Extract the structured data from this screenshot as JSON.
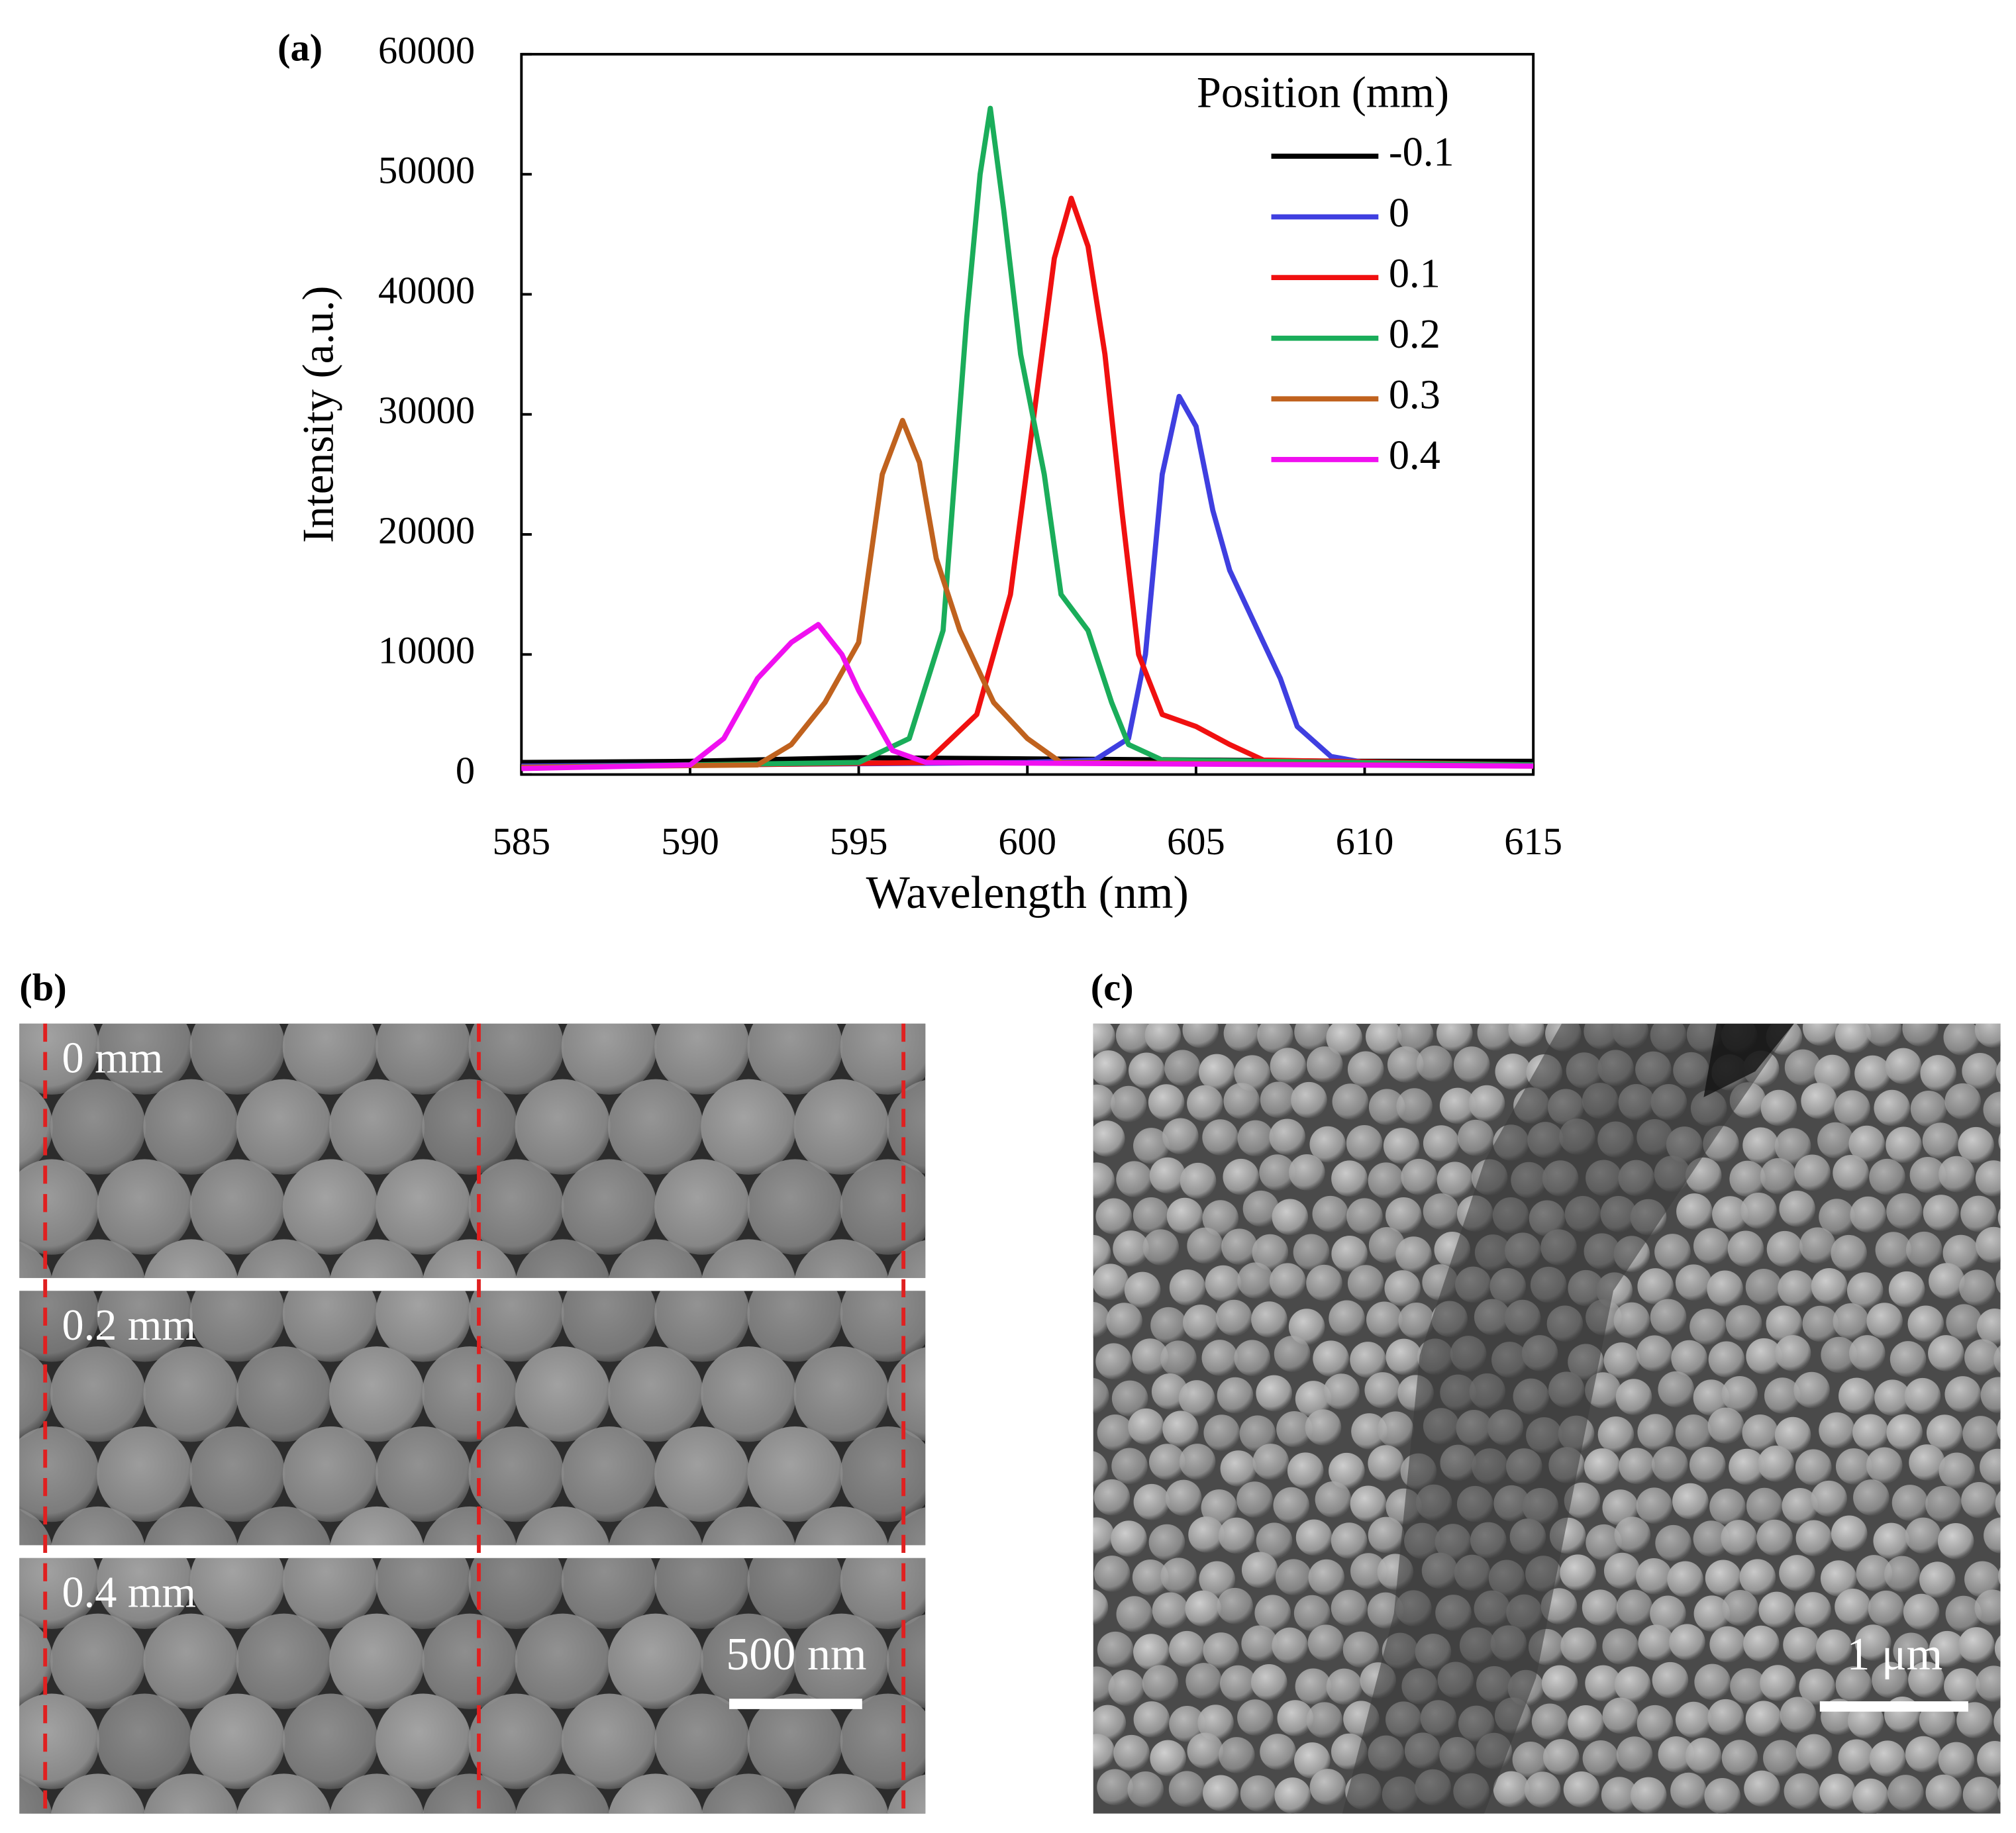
{
  "chart_data": {
    "type": "line",
    "panel_label": "(a)",
    "xlabel": "Wavelength (nm)",
    "ylabel": "Intensity (a.u.)",
    "legend_title": "Position (mm)",
    "xlim": [
      585,
      615
    ],
    "xticks": [
      585,
      590,
      595,
      600,
      605,
      610,
      615
    ],
    "ylim": [
      0,
      60000
    ],
    "yticks": [
      0,
      10000,
      20000,
      30000,
      40000,
      50000,
      60000
    ],
    "series": [
      {
        "name": "-0.1",
        "color": "#000000",
        "x": [
          585,
          590,
          595,
          600,
          605,
          610,
          615
        ],
        "values": [
          1000,
          1100,
          1400,
          1300,
          1200,
          1100,
          1100
        ]
      },
      {
        "name": "0",
        "color": "#3f3fe0",
        "x": [
          585,
          600,
          602,
          603,
          603.5,
          604,
          604.5,
          605,
          605.5,
          606,
          607,
          607.5,
          608,
          609,
          610,
          615
        ],
        "values": [
          700,
          1000,
          1200,
          3000,
          10000,
          25000,
          31500,
          29000,
          22000,
          17000,
          11000,
          8000,
          4000,
          1500,
          1000,
          800
        ]
      },
      {
        "name": "0.1",
        "color": "#f01010",
        "x": [
          585,
          597,
          598.5,
          599.5,
          600.2,
          600.8,
          601.3,
          601.8,
          602.3,
          602.8,
          603.3,
          604,
          605,
          606,
          607,
          615
        ],
        "values": [
          600,
          1000,
          5000,
          15000,
          30000,
          43000,
          48000,
          44000,
          35000,
          22000,
          10000,
          5000,
          4000,
          2500,
          1200,
          800
        ]
      },
      {
        "name": "0.2",
        "color": "#1aad5a",
        "x": [
          585,
          595,
          596.5,
          597.5,
          598.2,
          598.6,
          598.9,
          599.3,
          599.8,
          600.5,
          601,
          601.8,
          602.5,
          603,
          604,
          615
        ],
        "values": [
          600,
          1000,
          3000,
          12000,
          38000,
          50000,
          55500,
          47000,
          35000,
          25000,
          15000,
          12000,
          6000,
          2500,
          1200,
          800
        ]
      },
      {
        "name": "0.3",
        "color": "#c0621e",
        "x": [
          585,
          592,
          593,
          594,
          595,
          595.7,
          596.3,
          596.8,
          597.3,
          598,
          599,
          600,
          601,
          615
        ],
        "values": [
          600,
          800,
          2500,
          6000,
          11000,
          25000,
          29500,
          26000,
          18000,
          12000,
          6000,
          3000,
          1000,
          700
        ]
      },
      {
        "name": "0.4",
        "color": "#f010f0",
        "x": [
          585,
          590,
          591,
          592,
          593,
          593.8,
          594.5,
          595,
          596,
          597,
          615
        ],
        "values": [
          500,
          800,
          3000,
          8000,
          11000,
          12500,
          10000,
          7000,
          2000,
          1000,
          700
        ]
      }
    ]
  },
  "panel_b": {
    "label": "(b)",
    "strip_labels": [
      "0 mm",
      "0.2 mm",
      "0.4 mm"
    ],
    "scale_bar": "500 nm"
  },
  "panel_c": {
    "label": "(c)",
    "scale_bar": "1 μm"
  }
}
